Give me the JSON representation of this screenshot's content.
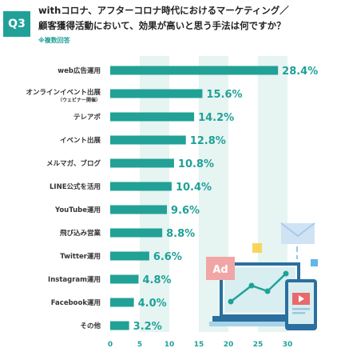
{
  "question": {
    "badge": "Q3",
    "title_line1": "withコロナ、アフターコロナ時代におけるマーケティング／",
    "title_line2": "顧客獲得活動において、効果が高いと思う手法は何ですか？",
    "note": "※複数回答"
  },
  "colors": {
    "accent": "#1fa198",
    "bar": "#22a196",
    "band": "#e6f4f2"
  },
  "chart_data": {
    "type": "bar",
    "orientation": "horizontal",
    "categories": [
      "web広告運用",
      "オンラインイベント出展",
      "テレアポ",
      "イベント出展",
      "メルマガ、ブログ",
      "LINE公式を活用",
      "YouTube運用",
      "飛び込み営業",
      "Twitter運用",
      "Instagram運用",
      "Facebook運用",
      "その他"
    ],
    "category_notes": [
      "",
      "（ウェビナー開催）",
      "",
      "",
      "",
      "",
      "",
      "",
      "",
      "",
      "",
      ""
    ],
    "values": [
      28.4,
      15.6,
      14.2,
      12.8,
      10.8,
      10.4,
      9.6,
      8.8,
      6.6,
      4.8,
      4.0,
      3.2
    ],
    "value_labels": [
      "28.4%",
      "15.6%",
      "14.2%",
      "12.8%",
      "10.8%",
      "10.4%",
      "9.6%",
      "8.8%",
      "6.6%",
      "4.8%",
      "4.0%",
      "3.2%"
    ],
    "xlim": [
      0,
      30
    ],
    "xticks": [
      "0",
      "5",
      "10",
      "15",
      "20",
      "25",
      "30"
    ],
    "grid": "alternating vertical bands"
  },
  "illustration": {
    "ad_label": "Ad"
  }
}
